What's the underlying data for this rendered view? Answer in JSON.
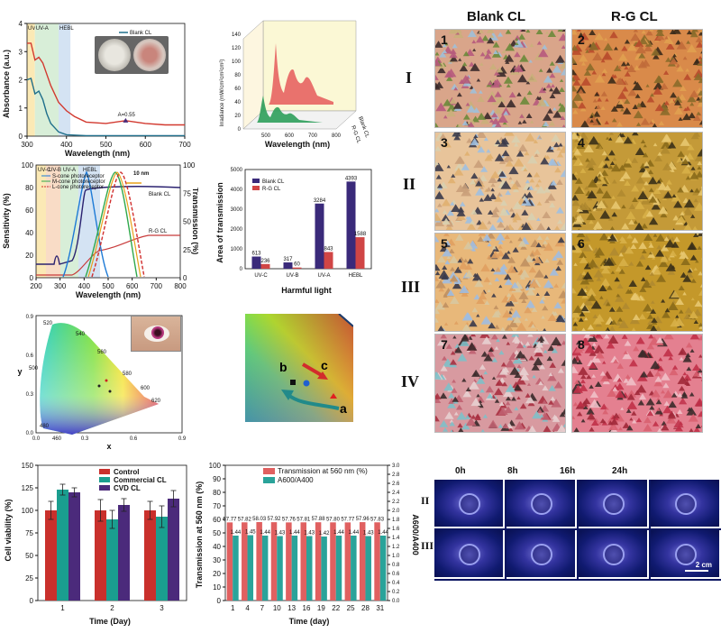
{
  "absorbance_chart": {
    "type": "line",
    "ylabel": "Absorbance (a.u.)",
    "xlabel": "Wavelength (nm)",
    "xlim": [
      300,
      700
    ],
    "ylim": [
      0,
      4
    ],
    "xticks": [
      "300",
      "400",
      "500",
      "600",
      "700"
    ],
    "yticks": [
      "0",
      "1",
      "2",
      "3",
      "4"
    ],
    "bands": [
      "UV-B",
      "UV-A",
      "HEBL"
    ],
    "annotation": "A=0.55",
    "series": [
      {
        "name": "Blank CL",
        "color": "#1f6f8b",
        "x": [
          300,
          310,
          320,
          330,
          340,
          350,
          360,
          380,
          400,
          450,
          500,
          600,
          700
        ],
        "y": [
          2.0,
          2.05,
          1.5,
          1.6,
          1.3,
          0.8,
          0.45,
          0.15,
          0.05,
          0.02,
          0.02,
          0.02,
          0.02
        ]
      },
      {
        "name": "R-G CL",
        "color": "#d2392f",
        "x": [
          300,
          310,
          320,
          330,
          340,
          350,
          360,
          380,
          400,
          420,
          450,
          500,
          550,
          600,
          650,
          700
        ],
        "y": [
          3.3,
          3.3,
          2.7,
          2.8,
          2.6,
          2.2,
          1.8,
          1.2,
          0.9,
          0.7,
          0.5,
          0.45,
          0.55,
          0.45,
          0.4,
          0.4
        ]
      }
    ]
  },
  "irradiance_chart": {
    "type": "area",
    "ylabel": "Irradiance (mW/cm²cm²cm²)",
    "xlabel": "Wavelength (nm)",
    "yticks": [
      "0",
      "20",
      "40",
      "60",
      "80",
      "100",
      "120",
      "140"
    ],
    "xticks": [
      "500",
      "600",
      "700",
      "800"
    ],
    "series": [
      {
        "name": "Blank CL",
        "color": "#e55a5a"
      },
      {
        "name": "R-G CL",
        "color": "#2e9e5b"
      }
    ]
  },
  "sensitivity_chart": {
    "type": "line",
    "ylabel": "Sensitivity (%)",
    "y2label": "Transmission (%)",
    "xlabel": "Wavelength (nm)",
    "xticks": [
      "200",
      "300",
      "400",
      "500",
      "600",
      "700",
      "800"
    ],
    "yticks": [
      "0",
      "20",
      "40",
      "60",
      "80",
      "100"
    ],
    "y2ticks": [
      "0",
      "25",
      "50",
      "75",
      "100"
    ],
    "bands": [
      "UV-C",
      "UV-B",
      "UV-A",
      "HEBL"
    ],
    "legend": [
      "S-cone photoreceptor",
      "M-cone photoreceptor",
      "L-cone photoreceptor"
    ],
    "annotation": "10 nm",
    "curve_labels": [
      "Blank CL",
      "R-G CL"
    ]
  },
  "bar_chart": {
    "type": "bar",
    "ylabel": "Area of transmission",
    "xlabel": "Harmful light",
    "categories": [
      "UV-C",
      "UV-B",
      "UV-A",
      "HEBL"
    ],
    "ylim": [
      0,
      5000
    ],
    "yticks": [
      "0",
      "1000",
      "2000",
      "3000",
      "4000",
      "5000"
    ],
    "series": [
      {
        "name": "Blank CL",
        "color": "#3a2a7a",
        "values": [
          613,
          317,
          3284,
          4393
        ]
      },
      {
        "name": "R-G CL",
        "color": "#d04545",
        "values": [
          236,
          60,
          843,
          1588
        ]
      }
    ]
  },
  "cie_chart": {
    "xlabel": "x",
    "ylabel": "y",
    "xticks": [
      "0.0",
      "0.3",
      "0.6",
      "0.9"
    ],
    "yticks": [
      "0.0",
      "0.3",
      "0.6",
      "0.9"
    ],
    "wavelength_labels": [
      "520",
      "540",
      "560",
      "580",
      "500",
      "600",
      "620",
      "480",
      "460"
    ]
  },
  "color_triangle": {
    "labels": [
      "b",
      "c",
      "a"
    ]
  },
  "viability_chart": {
    "type": "bar",
    "ylabel": "Cell viability (%)",
    "xlabel": "Time (Day)",
    "categories": [
      "1",
      "2",
      "3"
    ],
    "ylim": [
      0,
      150
    ],
    "yticks": [
      "0",
      "25",
      "50",
      "75",
      "100",
      "125",
      "150"
    ],
    "series": [
      {
        "name": "Control",
        "color": "#c9302c",
        "values": [
          100,
          100,
          100
        ],
        "err": [
          10,
          12,
          10
        ]
      },
      {
        "name": "Commercial CL",
        "color": "#1a9e8f",
        "values": [
          123,
          90,
          93
        ],
        "err": [
          6,
          10,
          12
        ]
      },
      {
        "name": "CVD CL",
        "color": "#4b2a7b",
        "values": [
          120,
          106,
          113
        ],
        "err": [
          5,
          7,
          9
        ]
      }
    ]
  },
  "stability_chart": {
    "type": "bar",
    "ylabel": "Transmission at 560 nm (%)",
    "y2label": "A600/A400",
    "xlabel": "Time (day)",
    "categories": [
      "1",
      "4",
      "7",
      "10",
      "13",
      "16",
      "19",
      "22",
      "25",
      "28",
      "31"
    ],
    "ylim": [
      0,
      100
    ],
    "y2lim": [
      0,
      3.0
    ],
    "yticks": [
      "0",
      "10",
      "20",
      "30",
      "40",
      "50",
      "60",
      "70",
      "80",
      "90",
      "100"
    ],
    "y2ticks": [
      "0.0",
      "0.2",
      "0.4",
      "0.6",
      "0.8",
      "1.0",
      "1.2",
      "1.4",
      "1.6",
      "1.8",
      "2.0",
      "2.2",
      "2.4",
      "2.6",
      "2.8",
      "3.0"
    ],
    "series": [
      {
        "name": "Transmission at 560 nm (%)",
        "color": "#e06060",
        "values": [
          57.77,
          57.82,
          58.03,
          57.92,
          57.76,
          57.81,
          57.88,
          57.8,
          57.77,
          57.96,
          57.83
        ]
      },
      {
        "name": "A600/A400",
        "color": "#2aa39a",
        "values": [
          1.44,
          1.45,
          1.44,
          1.43,
          1.44,
          1.43,
          1.42,
          1.44,
          1.44,
          1.43,
          1.44
        ]
      }
    ]
  },
  "ishihara": {
    "headers": [
      "Blank CL",
      "R-G CL"
    ],
    "rows": [
      "I",
      "II",
      "III",
      "IV"
    ],
    "tiles": [
      "1",
      "2",
      "3",
      "4",
      "5",
      "6",
      "7",
      "8"
    ]
  },
  "eye_photos": {
    "times": [
      "0h",
      "8h",
      "16h",
      "24h"
    ],
    "rows": [
      "II",
      "III"
    ],
    "scale": "2 cm"
  }
}
